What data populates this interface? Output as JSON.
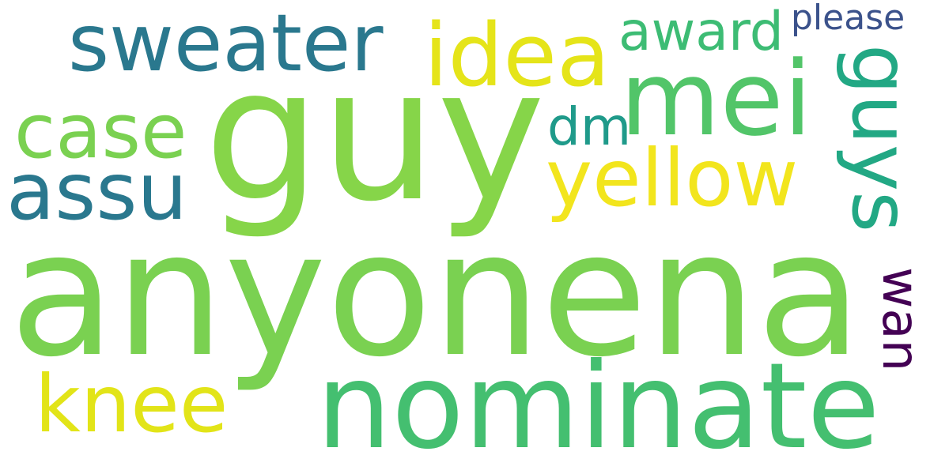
{
  "cloud": {
    "words": {
      "anyonena": {
        "text": "anyonena",
        "color": "#7ad151"
      },
      "guy": {
        "text": "guy",
        "color": "#86d549"
      },
      "nominate": {
        "text": "nominate",
        "color": "#44bf70"
      },
      "sweater": {
        "text": "sweater",
        "color": "#2a788e"
      },
      "mei": {
        "text": "mei",
        "color": "#52c569"
      },
      "idea": {
        "text": "idea",
        "color": "#e5e419"
      },
      "yellow": {
        "text": "yellow",
        "color": "#f2e51d"
      },
      "guys": {
        "text": "guys",
        "color": "#22a884"
      },
      "case": {
        "text": "case",
        "color": "#7ad151"
      },
      "assu": {
        "text": "assu",
        "color": "#2a788e"
      },
      "knee": {
        "text": "knee",
        "color": "#e2e418"
      },
      "dm": {
        "text": "dm",
        "color": "#1f9a8a"
      },
      "award": {
        "text": "award",
        "color": "#3dbc74"
      },
      "please": {
        "text": "please",
        "color": "#3b528b"
      },
      "wan": {
        "text": "wan",
        "color": "#440154"
      }
    }
  }
}
